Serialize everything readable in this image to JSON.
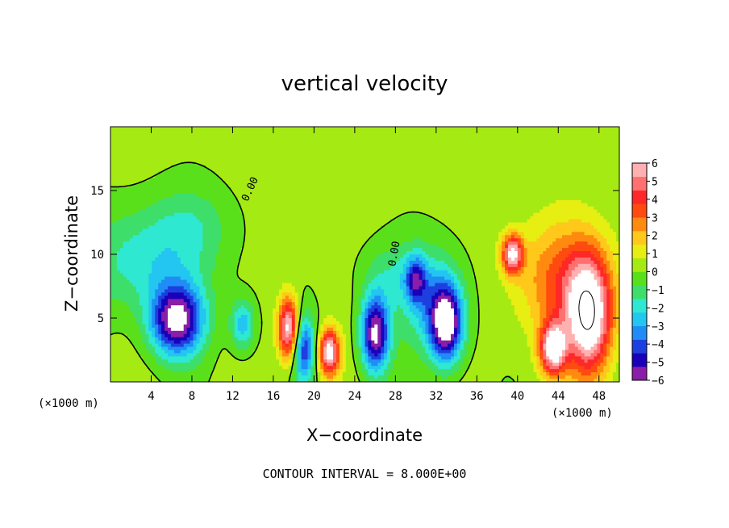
{
  "chart_data": {
    "type": "heatmap",
    "title": "vertical velocity",
    "xlabel": "X−coordinate",
    "ylabel": "Z−coordinate",
    "x_unit_left": "(×1000 m)",
    "x_unit_right": "(×1000 m)",
    "xlim": [
      0,
      50
    ],
    "ylim": [
      0,
      20
    ],
    "x_ticks": [
      4,
      8,
      12,
      16,
      20,
      24,
      28,
      32,
      36,
      40,
      44,
      48
    ],
    "y_ticks": [
      5,
      10,
      15
    ],
    "footer": "CONTOUR INTERVAL = 8.000E+00",
    "contour_labels": [
      "0.00",
      "0.00"
    ],
    "colorbar": {
      "range": [
        -6,
        6
      ],
      "tick_labels": [
        "6",
        "5",
        "4",
        "3",
        "2",
        "1",
        "0",
        "−1",
        "−2",
        "−3",
        "−4",
        "−5",
        "−6"
      ],
      "colors": [
        "#8a1ea8",
        "#1a00b8",
        "#1e3fe0",
        "#1f8df5",
        "#22c6f0",
        "#2ee8d2",
        "#3ede6a",
        "#5ae01a",
        "#a6ea14",
        "#e7ee12",
        "#ffc81a",
        "#ff8a10",
        "#ff4a10",
        "#ff2828",
        "#ff7070",
        "#ffb0b0"
      ]
    },
    "features": [
      {
        "kind": "downdraft",
        "x": 6.5,
        "z": 4.8,
        "w": -6.5
      },
      {
        "kind": "downdraft",
        "x": 19.0,
        "z": 2.6,
        "w": -4.5
      },
      {
        "kind": "downdraft",
        "x": 26.0,
        "z": 3.8,
        "w": -6.5
      },
      {
        "kind": "downdraft",
        "x": 33.0,
        "z": 4.5,
        "w": -6.5
      },
      {
        "kind": "downdraft",
        "x": 30.0,
        "z": 8.0,
        "w": -3.5
      },
      {
        "kind": "updraft",
        "x": 17.5,
        "z": 4.2,
        "w": 6.5
      },
      {
        "kind": "updraft",
        "x": 21.5,
        "z": 2.3,
        "w": 6.5
      },
      {
        "kind": "updraft",
        "x": 39.5,
        "z": 10.0,
        "w": 6.0
      },
      {
        "kind": "updraft",
        "x": 47.0,
        "z": 5.0,
        "w": 7.0
      },
      {
        "kind": "updraft",
        "x": 43.5,
        "z": 2.6,
        "w": 6.5
      }
    ]
  }
}
